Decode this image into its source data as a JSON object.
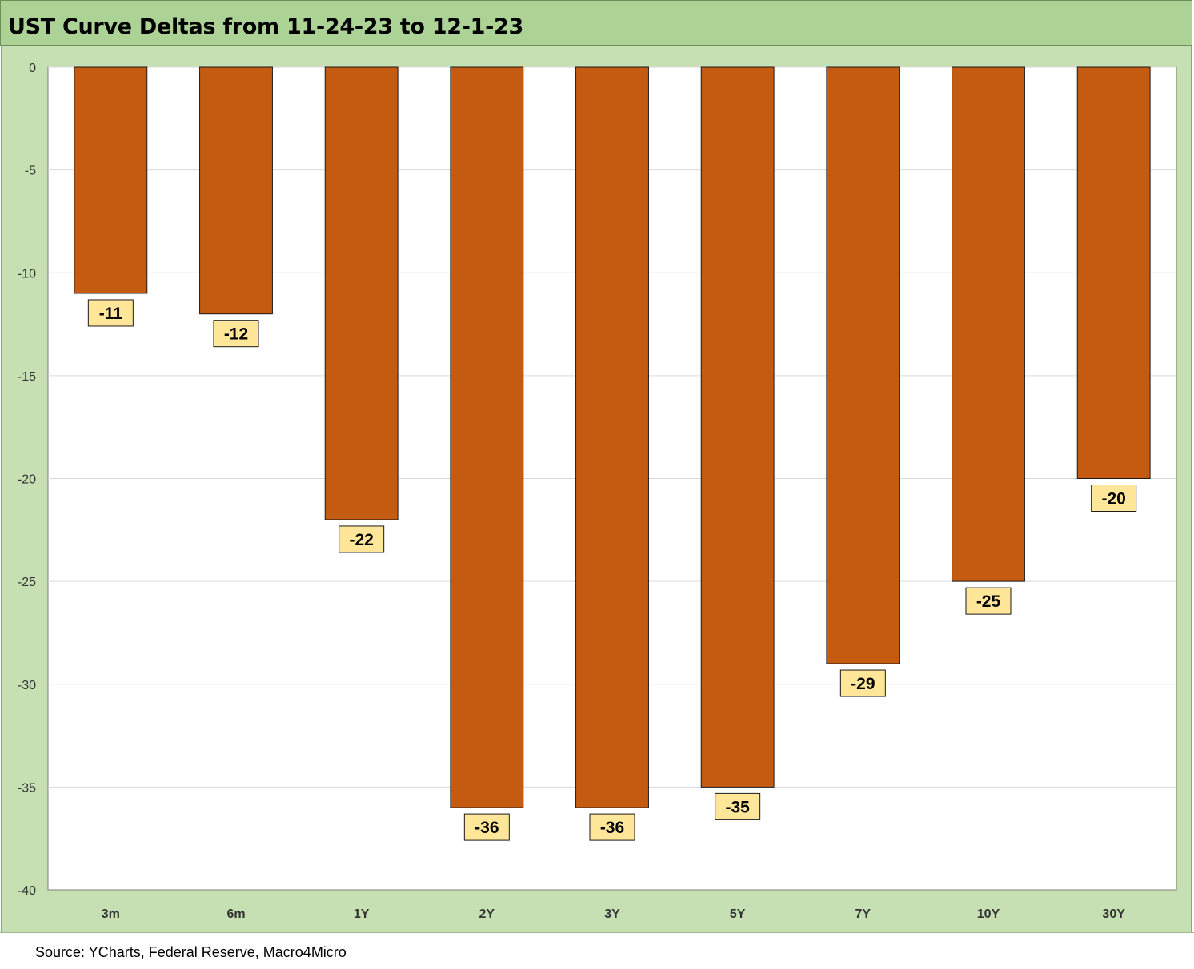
{
  "title": "UST Curve Deltas from 11-24-23 to 12-1-23",
  "source": "Source: YCharts, Federal Reserve, Macro4Micro",
  "colors": {
    "bar": "#c55a11",
    "bar_outline": "#1a1a1a",
    "label_box": "#ffe699",
    "title_bg": "#acd296",
    "frame_bg": "#c6e0b4",
    "plot_bg": "#ffffff",
    "grid": "#d9d9d9"
  },
  "chart_data": {
    "type": "bar",
    "categories": [
      "3m",
      "6m",
      "1Y",
      "2Y",
      "3Y",
      "5Y",
      "7Y",
      "10Y",
      "30Y"
    ],
    "values": [
      -11,
      -12,
      -22,
      -36,
      -36,
      -35,
      -29,
      -25,
      -20
    ],
    "ylim": [
      -40,
      0
    ],
    "yticks": [
      0,
      -5,
      -10,
      -15,
      -20,
      -25,
      -30,
      -35,
      -40
    ],
    "grid": true,
    "legend": "none",
    "data_labels": true
  }
}
